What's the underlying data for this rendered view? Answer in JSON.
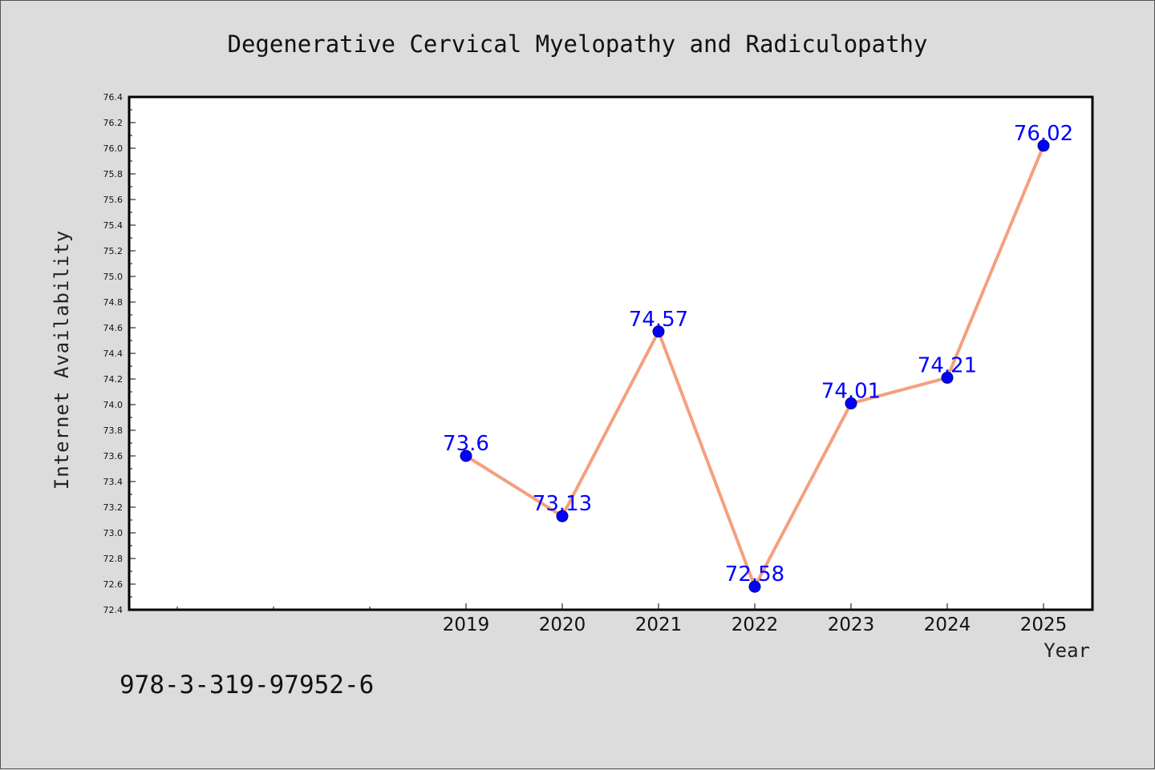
{
  "chart_data": {
    "type": "line",
    "title": "Degenerative Cervical Myelopathy and Radiculopathy",
    "xlabel": "Year",
    "ylabel": "Internet Availability",
    "x": [
      "2019",
      "2020",
      "2021",
      "2022",
      "2023",
      "2024",
      "2025"
    ],
    "series": [
      {
        "values": [
          73.6,
          73.13,
          74.57,
          72.58,
          74.01,
          74.21,
          76.02
        ]
      }
    ],
    "data_labels": [
      "73.6",
      "73.13",
      "74.57",
      "72.58",
      "74.01",
      "74.21",
      "76.02"
    ],
    "ylim": [
      72.4,
      76.4
    ],
    "yticks": [
      "72.4",
      "72.6",
      "72.8",
      "73.0",
      "73.2",
      "73.4",
      "73.6",
      "73.8",
      "74.0",
      "74.2",
      "74.4",
      "74.6",
      "74.8",
      "75.0",
      "75.2",
      "75.4",
      "75.6",
      "75.8",
      "76.0",
      "76.2",
      "76.4"
    ],
    "grid": false,
    "legend": "none",
    "colors": {
      "line": "#f4a07e",
      "marker": "#0000ff",
      "marker_edge": "#000080",
      "data_label": "#0000ff",
      "plot_background": "#ffffff",
      "figure_background": "#dcdcdc"
    }
  },
  "footer": {
    "isbn": "978-3-319-97952-6"
  }
}
